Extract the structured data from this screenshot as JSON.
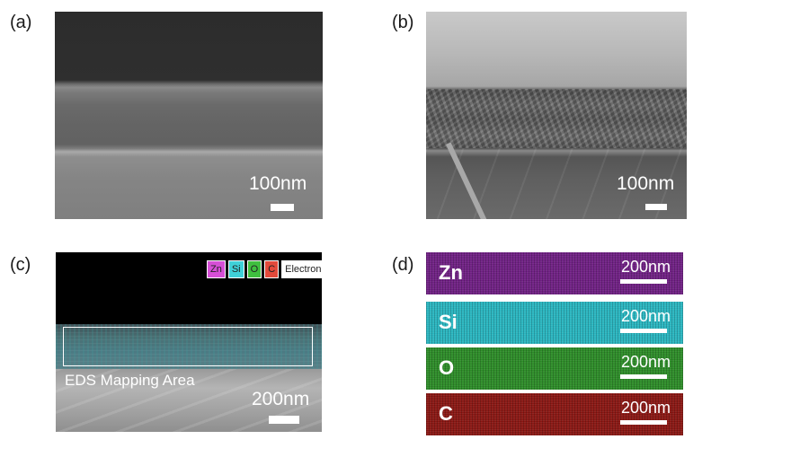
{
  "panels": {
    "a": {
      "label": "(a)",
      "scale": "100nm"
    },
    "b": {
      "label": "(b)",
      "scale": "100nm"
    },
    "c": {
      "label": "(c)",
      "scale": "200nm",
      "mapping_label": "EDS Mapping Area",
      "legend": [
        {
          "text": "Zn",
          "color": "#d64fd6"
        },
        {
          "text": "Si",
          "color": "#3fd0d8"
        },
        {
          "text": "O",
          "color": "#3fbf3f"
        },
        {
          "text": "C",
          "color": "#e24a3b"
        },
        {
          "text": "Electron",
          "color": "#ffffff"
        }
      ]
    },
    "d": {
      "label": "(d)",
      "maps": [
        {
          "element": "Zn",
          "scale": "200nm",
          "color": "#6f1f83"
        },
        {
          "element": "Si",
          "scale": "200nm",
          "color": "#28b5bf"
        },
        {
          "element": "O",
          "scale": "200nm",
          "color": "#2c8c27"
        },
        {
          "element": "C",
          "scale": "200nm",
          "color": "#8a1612"
        }
      ]
    }
  }
}
